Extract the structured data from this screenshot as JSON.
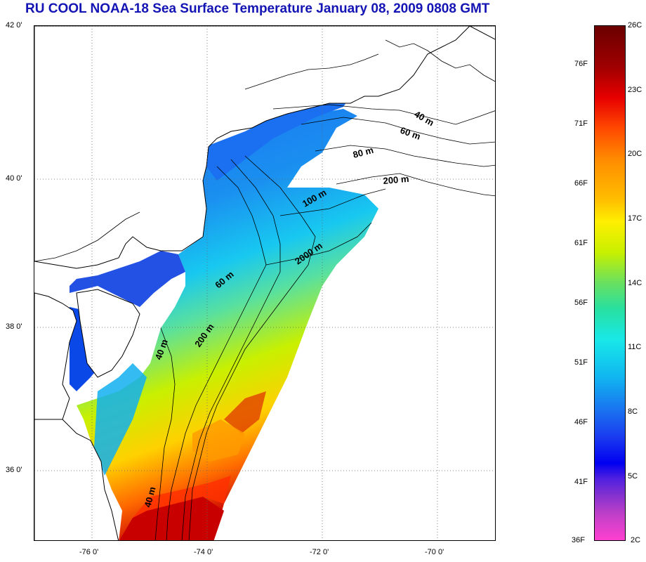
{
  "title": "RU COOL  NOAA-18 Sea Surface Temperature January 08, 2009 0808 GMT",
  "map": {
    "lon_ticks": [
      "-76 0'",
      "-74 0'",
      "-72 0'",
      "-70 0'"
    ],
    "lat_ticks": [
      "42 0'",
      "40 0'",
      "38 0'",
      "36 0'"
    ],
    "contour_labels": [
      "40 m",
      "60 m",
      "80 m",
      "200 m",
      "100 m",
      "2000 m",
      "60 m",
      "200 m",
      "40 m",
      "40 m"
    ],
    "colors": {
      "land": "#ffffff",
      "coastline": "#000000",
      "contour": "#000000",
      "grid": "#666666"
    }
  },
  "colorbar": {
    "fahrenheit_labels": [
      "76F",
      "71F",
      "66F",
      "61F",
      "56F",
      "51F",
      "46F",
      "41F",
      "36F"
    ],
    "celsius_labels": [
      "26C",
      "23C",
      "20C",
      "17C",
      "14C",
      "11C",
      "8C",
      "5C",
      "2C"
    ]
  }
}
